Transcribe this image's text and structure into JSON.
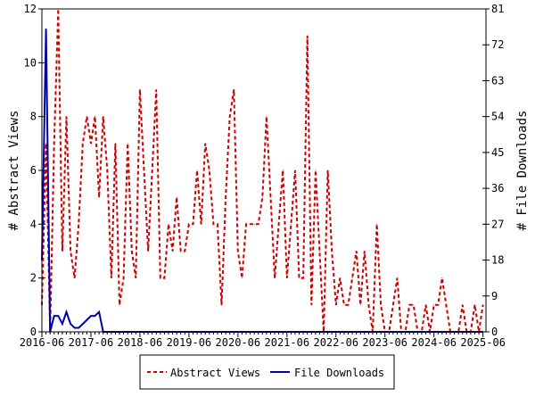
{
  "chart_data": {
    "type": "line",
    "x_start": "2016-06",
    "x_interval": "month",
    "x_tick_labels": [
      "2016-06",
      "2017-06",
      "2018-06",
      "2019-06",
      "2020-06",
      "2021-06",
      "2022-06",
      "2023-06",
      "2024-06",
      "2025-06"
    ],
    "ylabel": "# Abstract Views",
    "ylabel_right": "# File Downloads",
    "ylim": [
      0,
      12
    ],
    "ylim_right": [
      0,
      81
    ],
    "yticks": [
      0,
      2,
      4,
      6,
      8,
      10,
      12
    ],
    "yticks_right": [
      0,
      9,
      18,
      27,
      36,
      45,
      54,
      63,
      72,
      81
    ],
    "grid": false,
    "legend_position": "bottom",
    "series": [
      {
        "name": "Abstract Views",
        "axis": "left",
        "color": "#cc0000",
        "style": "dashed",
        "values": [
          1,
          7,
          0,
          7,
          12,
          3,
          8,
          3,
          2,
          4,
          7,
          8,
          7,
          8,
          5,
          8,
          6,
          2,
          7,
          1,
          2,
          7,
          3,
          2,
          9,
          6,
          3,
          6,
          9,
          2,
          2,
          4,
          3,
          5,
          3,
          3,
          4,
          4,
          6,
          4,
          7,
          6,
          4,
          4,
          1,
          5,
          8,
          9,
          3,
          2,
          4,
          4,
          4,
          4,
          5,
          8,
          5,
          2,
          4,
          6,
          2,
          4,
          6,
          2,
          2,
          11,
          1,
          6,
          3,
          0,
          6,
          3,
          1,
          2,
          1,
          1,
          2,
          3,
          1,
          3,
          1,
          0,
          4,
          1,
          0,
          0,
          1,
          2,
          0,
          0,
          1,
          1,
          0,
          0,
          1,
          0,
          1,
          1,
          2,
          1,
          0,
          0,
          0,
          1,
          0,
          0,
          1,
          0,
          1
        ]
      },
      {
        "name": "File Downloads",
        "axis": "right",
        "color": "#0000aa",
        "style": "solid",
        "values": [
          18,
          76,
          0,
          4,
          4,
          2,
          5,
          2,
          1,
          1,
          2,
          3,
          4,
          4,
          5,
          0,
          0,
          0,
          0,
          0,
          0,
          0,
          0,
          0,
          0,
          0,
          0,
          0,
          0,
          0,
          0,
          0,
          0,
          0,
          0,
          0,
          0,
          0,
          0,
          0,
          0,
          0,
          0,
          0,
          0,
          0,
          0,
          0,
          0,
          0,
          0,
          0,
          0,
          0,
          0,
          0,
          0,
          0,
          0,
          0,
          0,
          0,
          0,
          0,
          0,
          0,
          0,
          0,
          0,
          0,
          0,
          0,
          0,
          0,
          0,
          0,
          0,
          0,
          0,
          0,
          0,
          0,
          0,
          0,
          0,
          0,
          0,
          0,
          0,
          0,
          0,
          0,
          0,
          0,
          0,
          0,
          0,
          0,
          0,
          0,
          0,
          0,
          0,
          0,
          0,
          0,
          0,
          0,
          0
        ]
      }
    ]
  }
}
